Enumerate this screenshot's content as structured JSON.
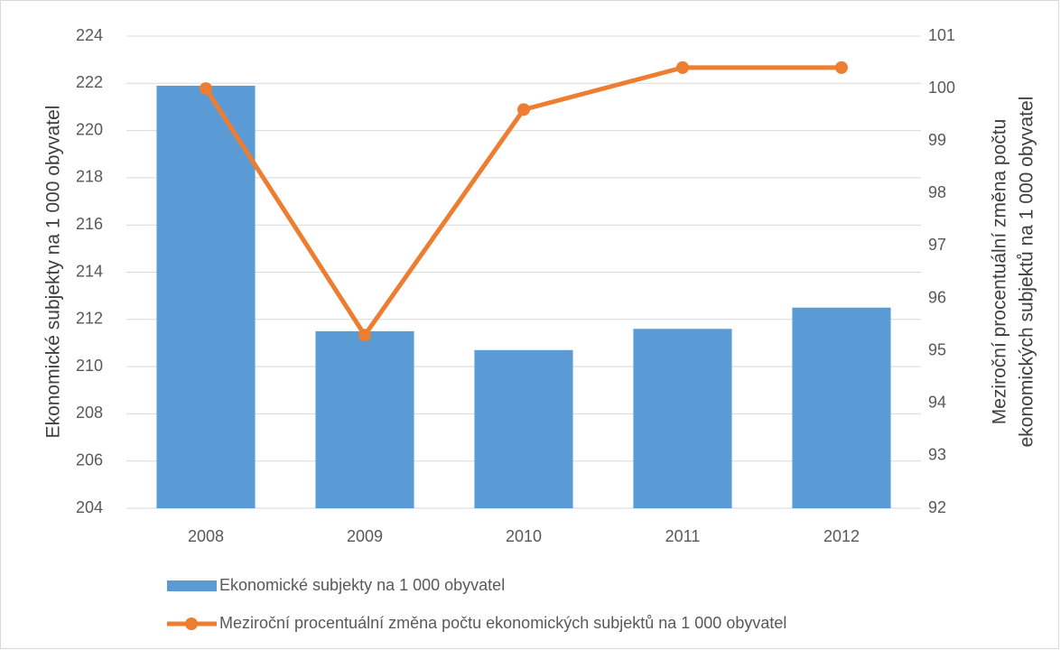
{
  "chart_data": {
    "type": "bar",
    "categories": [
      "2008",
      "2009",
      "2010",
      "2011",
      "2012"
    ],
    "ylabel": "Ekonomické subjekty na 1 000 obyvatel",
    "y2label": [
      "Meziroční procentuální změna počtu",
      "ekonomických subjektů na 1 000 obyvatel"
    ],
    "series": [
      {
        "name": "Ekonomické subjekty na 1 000 obyvatel",
        "type": "bar",
        "axis": "y",
        "color": "#5b9bd5",
        "values": [
          221.9,
          211.5,
          210.7,
          211.6,
          212.5
        ]
      },
      {
        "name": "Meziroční procentuální změna počtu ekonomických subjektů na 1 000 obyvatel",
        "type": "line",
        "axis": "y2",
        "color": "#ed7d31",
        "values": [
          100.0,
          95.3,
          99.6,
          100.4,
          100.4
        ]
      }
    ],
    "ylim": [
      204,
      224
    ],
    "yticks": [
      204,
      206,
      208,
      210,
      212,
      214,
      216,
      218,
      220,
      222,
      224
    ],
    "y2lim": [
      92,
      101
    ],
    "y2ticks": [
      92,
      93,
      94,
      95,
      96,
      97,
      98,
      99,
      100,
      101
    ],
    "grid": true,
    "legend": "bottom"
  }
}
